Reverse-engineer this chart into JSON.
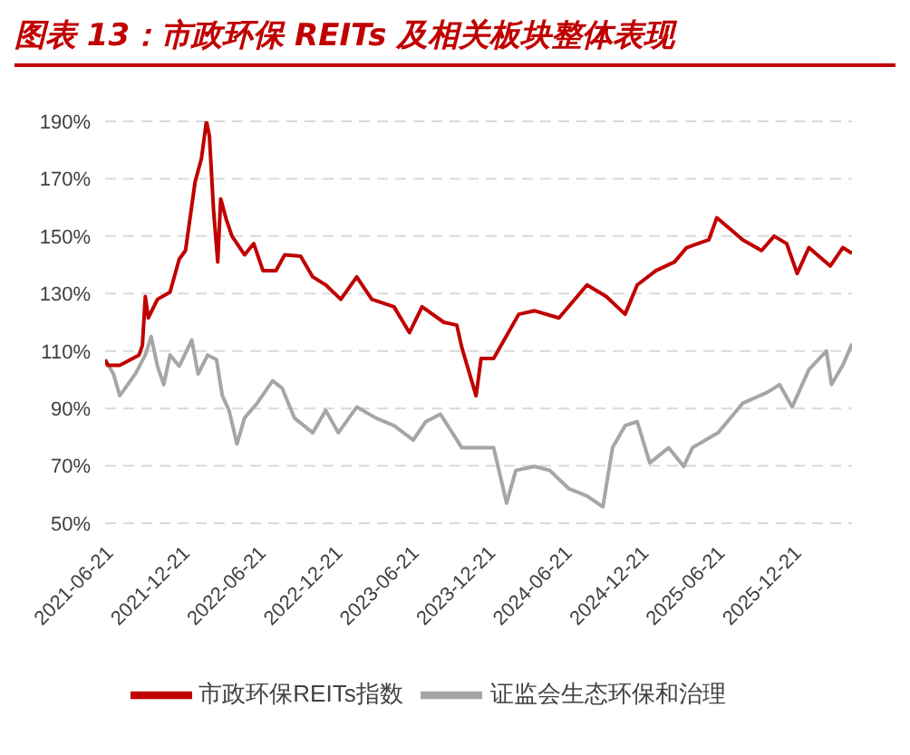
{
  "chart_data": {
    "type": "line",
    "title": "图表 13：市政环保 REITs 及相关板块整体表现",
    "series": [
      {
        "name": "证监会生态环保和治理",
        "color": "#a6a6a6",
        "x": [
          "2021-06-21",
          "2021-07-11",
          "2021-07-26",
          "2021-09-01",
          "2021-09-25",
          "2021-10-09",
          "2021-10-24",
          "2021-11-08",
          "2021-11-23",
          "2021-12-15",
          "2022-01-14",
          "2022-01-29",
          "2022-02-21",
          "2022-03-14",
          "2022-03-28",
          "2022-04-13",
          "2022-05-02",
          "2022-05-20",
          "2022-06-19",
          "2022-07-26",
          "2022-08-18",
          "2022-09-16",
          "2022-10-30",
          "2022-11-30",
          "2022-12-30",
          "2023-02-12",
          "2023-03-29",
          "2023-05-12",
          "2023-06-27",
          "2023-07-27",
          "2023-08-31",
          "2023-10-21",
          "2024-01-05",
          "2024-02-05",
          "2024-02-27",
          "2024-04-12",
          "2024-05-18",
          "2024-07-03",
          "2024-08-15",
          "2024-09-22",
          "2024-10-15",
          "2024-11-14",
          "2024-12-13",
          "2025-01-12",
          "2025-02-26",
          "2025-04-03",
          "2025-04-24",
          "2025-06-24",
          "2025-08-22",
          "2025-10-21",
          "2025-11-18",
          "2025-12-18",
          "2026-01-27",
          "2026-03-10",
          "2026-03-22",
          "2026-04-18",
          "2026-05-10"
        ],
        "values": [
          107,
          102,
          94.4,
          102,
          108.6,
          115,
          104.7,
          98.3,
          108.6,
          104.7,
          113.8,
          102,
          108.6,
          107,
          94.4,
          89.3,
          77.6,
          86.7,
          91.8,
          99.6,
          97,
          86.7,
          81.5,
          89.3,
          81.5,
          90.5,
          86.7,
          84,
          79,
          85.4,
          88,
          76.3,
          76.3,
          57,
          68.4,
          69.8,
          68.4,
          62,
          59.5,
          55.7,
          76.3,
          84,
          85.4,
          71,
          76.3,
          69.8,
          76.3,
          81.5,
          91.8,
          95.7,
          98.3,
          90.5,
          103.5,
          110,
          98.3,
          105,
          112.5
        ]
      },
      {
        "name": "市政环保REITs指数",
        "color": "#c00000",
        "x": [
          "2021-06-21",
          "2021-06-27",
          "2021-07-26",
          "2021-09-10",
          "2021-09-18",
          "2021-09-25",
          "2021-10-02",
          "2021-10-24",
          "2021-11-23",
          "2021-12-15",
          "2021-12-30",
          "2022-01-22",
          "2022-02-06",
          "2022-02-18",
          "2022-02-25",
          "2022-03-07",
          "2022-03-17",
          "2022-03-24",
          "2022-04-06",
          "2022-04-20",
          "2022-05-20",
          "2022-06-11",
          "2022-07-03",
          "2022-08-03",
          "2022-08-24",
          "2022-10-01",
          "2022-10-30",
          "2022-11-30",
          "2023-01-05",
          "2023-02-12",
          "2023-03-20",
          "2023-05-12",
          "2023-06-18",
          "2023-07-18",
          "2023-09-08",
          "2023-10-09",
          "2023-10-21",
          "2023-11-24",
          "2023-12-06",
          "2024-01-05",
          "2024-03-05",
          "2024-04-12",
          "2024-06-09",
          "2024-08-15",
          "2024-09-30",
          "2024-11-14",
          "2024-12-13",
          "2025-01-27",
          "2025-03-12",
          "2025-04-10",
          "2025-06-02",
          "2025-06-21",
          "2025-07-23",
          "2025-08-22",
          "2025-10-06",
          "2025-11-05",
          "2025-12-05",
          "2025-12-30",
          "2026-01-27",
          "2026-03-19",
          "2026-04-18",
          "2026-05-10"
        ],
        "values": [
          107,
          105,
          105,
          108.6,
          112,
          129,
          121.5,
          128,
          130.5,
          142,
          145,
          169,
          177,
          190,
          185,
          159,
          141,
          163,
          156,
          150,
          143.5,
          147.4,
          138,
          138,
          143.5,
          143,
          135.8,
          133,
          128,
          135.8,
          128,
          125.4,
          116.4,
          125.4,
          120,
          119,
          111.2,
          94.4,
          107.4,
          107.4,
          122.8,
          124,
          121.5,
          133,
          129,
          122.8,
          133,
          138,
          141,
          146,
          148.7,
          156.4,
          152.5,
          148.7,
          145,
          150,
          147.4,
          137,
          146,
          139.6,
          146,
          144
        ]
      }
    ],
    "xlim": [
      "2021-06-21",
      "2026-05-10"
    ],
    "xticks": [
      "2021-06-21",
      "2021-12-21",
      "2022-06-21",
      "2022-12-21",
      "2023-06-21",
      "2023-12-21",
      "2024-06-21",
      "2024-12-21",
      "2025-06-21",
      "2025-12-21"
    ],
    "ylim": [
      50,
      190
    ],
    "yticks": [
      {
        "value": 50,
        "label": "50%"
      },
      {
        "value": 70,
        "label": "70%"
      },
      {
        "value": 90,
        "label": "90%"
      },
      {
        "value": 110,
        "label": "110%"
      },
      {
        "value": 130,
        "label": "130%"
      },
      {
        "value": 150,
        "label": "150%"
      },
      {
        "value": 170,
        "label": "170%"
      },
      {
        "value": 190,
        "label": "190%"
      }
    ],
    "grid": "y",
    "legend": "bottom",
    "marker": "none",
    "line_style": "solid"
  }
}
